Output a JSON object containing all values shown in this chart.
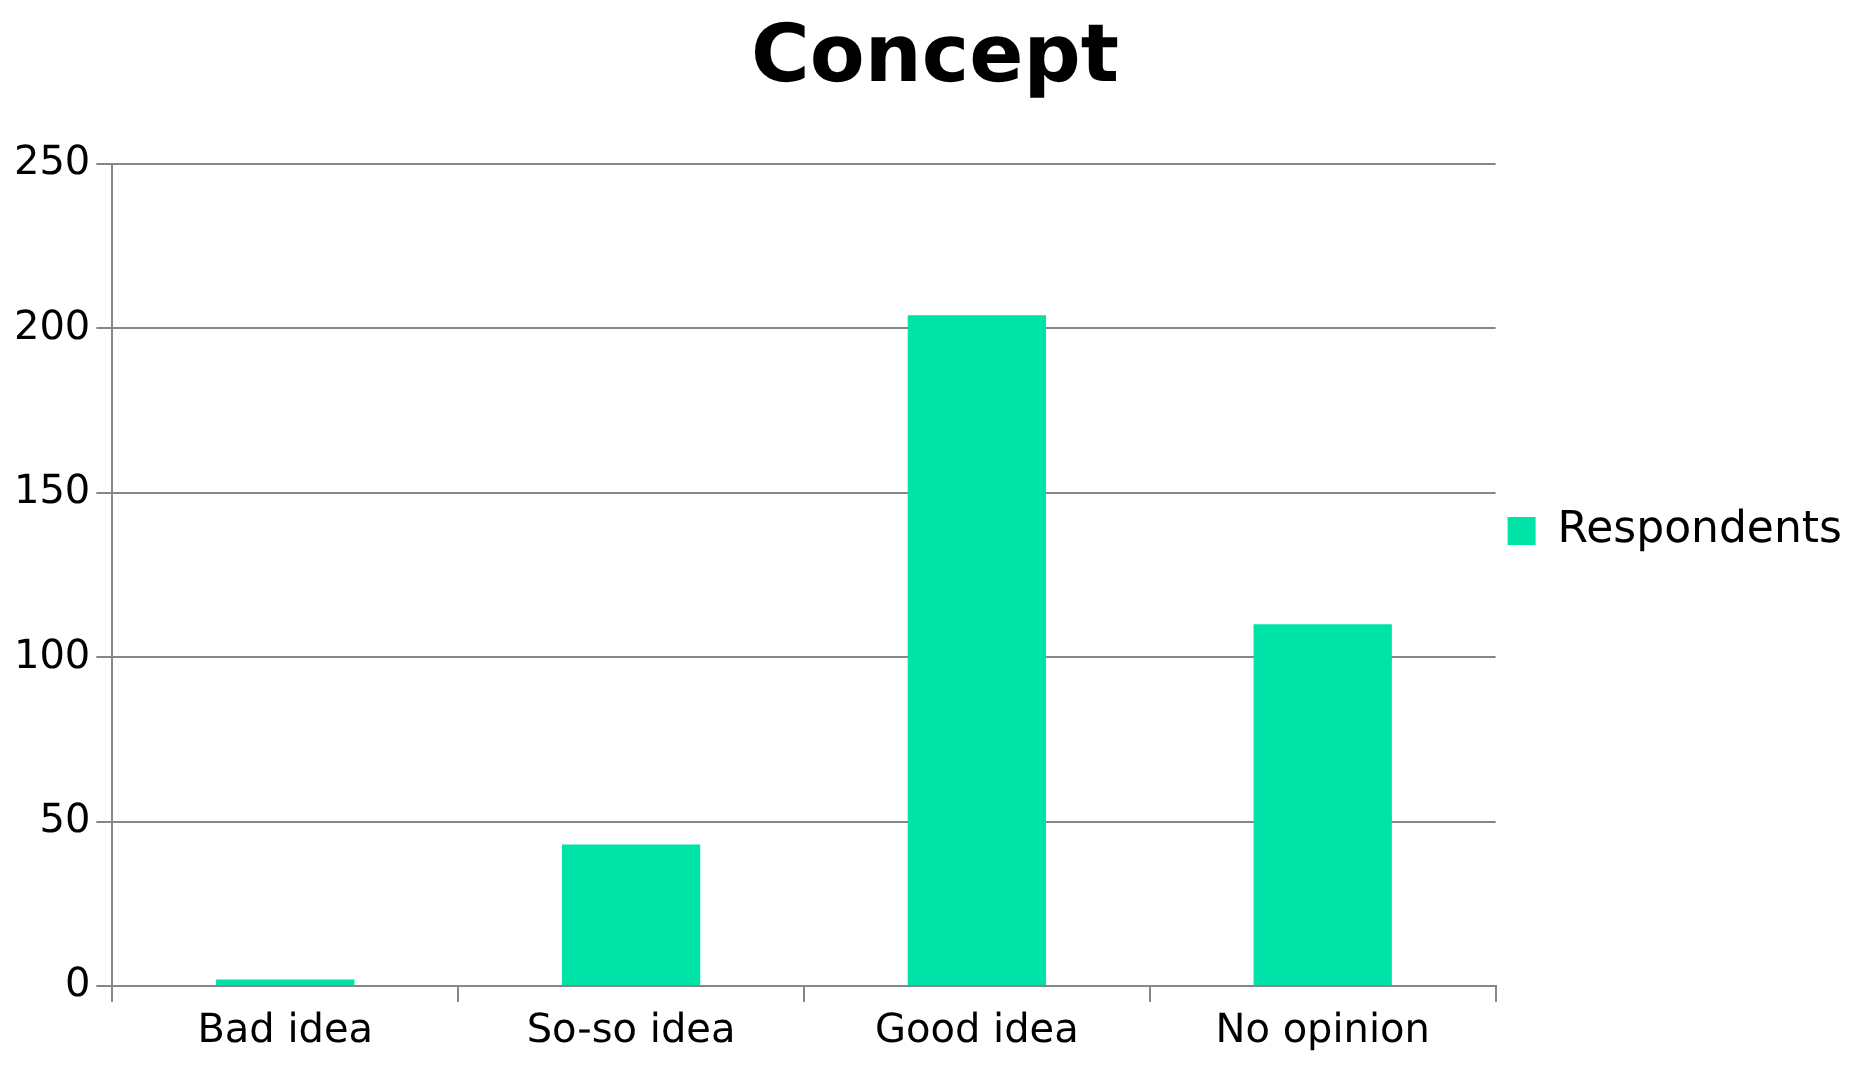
{
  "chart_data": {
    "type": "bar",
    "title": "Concept",
    "categories": [
      "Bad idea",
      "So-so idea",
      "Good idea",
      "No opinion"
    ],
    "series": [
      {
        "name": "Respondents",
        "color": "#00e3a6",
        "values": [
          2,
          43,
          204,
          110
        ]
      }
    ],
    "ylim": [
      0,
      250
    ],
    "yticks": [
      0,
      50,
      100,
      150,
      200,
      250
    ],
    "grid": "y",
    "legend": "right"
  }
}
